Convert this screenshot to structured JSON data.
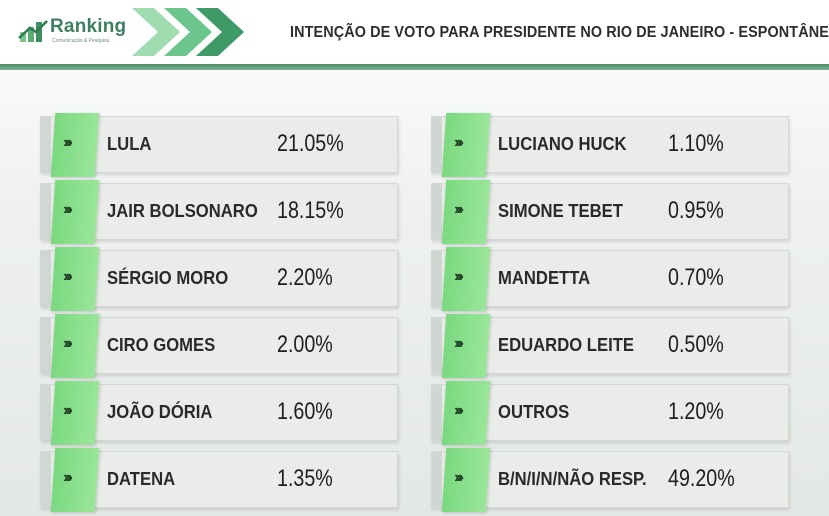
{
  "header": {
    "logo_text": "Ranking",
    "logo_sub": "Comunicação & Pesquisa",
    "title": "INTENÇÃO DE VOTO PARA PRESIDENTE NO RIO DE JANEIRO - ESPONTÂNEA"
  },
  "colors": {
    "accent_green": "#8de08c",
    "header_line": "#5f9a78",
    "card_bg": "#e9ece9"
  },
  "chart_data": {
    "type": "table",
    "title": "INTENÇÃO DE VOTO PARA PRESIDENTE NO RIO DE JANEIRO - ESPONTÂNEA",
    "rows": [
      {
        "name": "LULA",
        "value": "21.05%"
      },
      {
        "name": "JAIR BOLSONARO",
        "value": "18.15%"
      },
      {
        "name": "SÉRGIO MORO",
        "value": "2.20%"
      },
      {
        "name": "CIRO GOMES",
        "value": "2.00%"
      },
      {
        "name": "JOÃO DÓRIA",
        "value": "1.60%"
      },
      {
        "name": "DATENA",
        "value": "1.35%"
      },
      {
        "name": "LUCIANO HUCK",
        "value": "1.10%"
      },
      {
        "name": "SIMONE TEBET",
        "value": "0.95%"
      },
      {
        "name": "MANDETTA",
        "value": "0.70%"
      },
      {
        "name": "EDUARDO LEITE",
        "value": "0.50%"
      },
      {
        "name": "OUTROS",
        "value": "1.20%"
      },
      {
        "name": "B/N/I/N/NÃO RESP.",
        "value": "49.20%"
      }
    ]
  }
}
